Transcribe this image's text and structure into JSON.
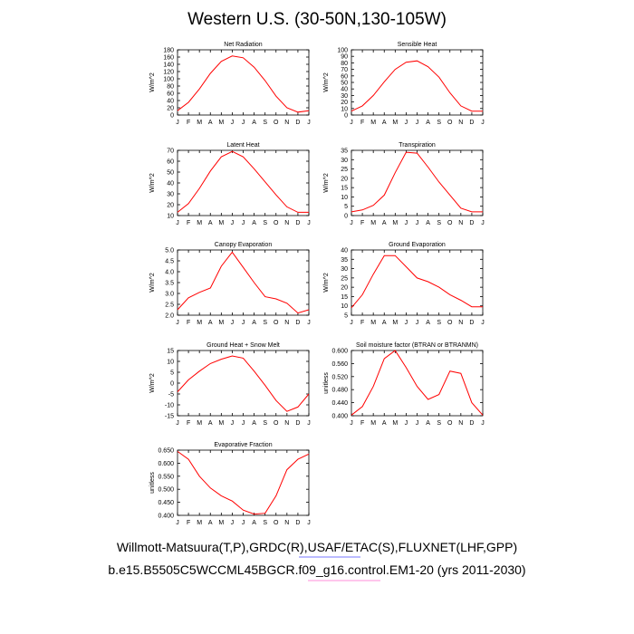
{
  "page": {
    "title": "Western U.S. (30-50N,130-105W)",
    "footer_line1": "Willmott-Matsuura(T,P),GRDC(R),USAF/ETAC(S),FLUXNET(LHF,GPP)",
    "footer_line2": "b.e15.B5505C5WCCML45BGCR.f09_g16.control.EM1-20 (yrs 2011-2030)"
  },
  "colors": {
    "line": "#ff0000",
    "axis": "#000000",
    "footer_underline_1": "#4a4aff",
    "footer_underline_2": "#ff66cc"
  },
  "chart_data": [
    {
      "type": "line",
      "title": "Net Radiation",
      "ylabel": "W/m^2",
      "categories": [
        "J",
        "F",
        "M",
        "A",
        "M",
        "J",
        "J",
        "A",
        "S",
        "O",
        "N",
        "D",
        "J"
      ],
      "ylim": [
        0,
        180
      ],
      "yticks": [
        0,
        20,
        40,
        60,
        80,
        100,
        120,
        140,
        160,
        180
      ],
      "ytick_labels": [
        "0",
        "20",
        "40",
        "60",
        "80",
        "100",
        "120",
        "140",
        "160",
        "180"
      ],
      "values": [
        12,
        35,
        72,
        115,
        148,
        163,
        158,
        132,
        95,
        52,
        20,
        8,
        12
      ]
    },
    {
      "type": "line",
      "title": "Sensible Heat",
      "ylabel": "W/m^2",
      "categories": [
        "J",
        "F",
        "M",
        "A",
        "M",
        "J",
        "J",
        "A",
        "S",
        "O",
        "N",
        "D",
        "J"
      ],
      "ylim": [
        0,
        100
      ],
      "yticks": [
        0,
        10,
        20,
        30,
        40,
        50,
        60,
        70,
        80,
        90,
        100
      ],
      "ytick_labels": [
        "0",
        "10",
        "20",
        "30",
        "40",
        "50",
        "60",
        "70",
        "80",
        "90",
        "100"
      ],
      "values": [
        6,
        14,
        30,
        51,
        70,
        81,
        83,
        74,
        58,
        34,
        14,
        6,
        6
      ]
    },
    {
      "type": "line",
      "title": "Latent Heat",
      "ylabel": "W/m^2",
      "categories": [
        "J",
        "F",
        "M",
        "A",
        "M",
        "J",
        "J",
        "A",
        "S",
        "O",
        "N",
        "D",
        "J"
      ],
      "ylim": [
        10,
        70
      ],
      "yticks": [
        10,
        20,
        30,
        40,
        50,
        60,
        70
      ],
      "ytick_labels": [
        "10",
        "20",
        "30",
        "40",
        "50",
        "60",
        "70"
      ],
      "values": [
        13,
        21,
        35,
        51,
        64,
        69,
        64,
        53,
        41,
        29,
        18,
        13,
        13
      ]
    },
    {
      "type": "line",
      "title": "Transpiration",
      "ylabel": "W/m^2",
      "categories": [
        "J",
        "F",
        "M",
        "A",
        "M",
        "J",
        "J",
        "A",
        "S",
        "O",
        "N",
        "D",
        "J"
      ],
      "ylim": [
        0,
        35
      ],
      "yticks": [
        0,
        5,
        10,
        15,
        20,
        25,
        30,
        35
      ],
      "ytick_labels": [
        "0",
        "5",
        "10",
        "15",
        "20",
        "25",
        "30",
        "35"
      ],
      "values": [
        2,
        3,
        5.5,
        11,
        23,
        34,
        33.5,
        26,
        18,
        11,
        4,
        2,
        2
      ]
    },
    {
      "type": "line",
      "title": "Canopy Evaporation",
      "ylabel": "W/m^2",
      "categories": [
        "J",
        "F",
        "M",
        "A",
        "M",
        "J",
        "J",
        "A",
        "S",
        "O",
        "N",
        "D",
        "J"
      ],
      "ylim": [
        2.0,
        5.0
      ],
      "yticks": [
        2.0,
        2.5,
        3.0,
        3.5,
        4.0,
        4.5,
        5.0
      ],
      "ytick_labels": [
        "2.0",
        "2.5",
        "3.0",
        "3.5",
        "4.0",
        "4.5",
        "5.0"
      ],
      "values": [
        2.25,
        2.8,
        3.05,
        3.25,
        4.25,
        4.9,
        4.2,
        3.5,
        2.85,
        2.75,
        2.55,
        2.1,
        2.25
      ]
    },
    {
      "type": "line",
      "title": "Ground Evaporation",
      "ylabel": "W/m^2",
      "categories": [
        "J",
        "F",
        "M",
        "A",
        "M",
        "J",
        "J",
        "A",
        "S",
        "O",
        "N",
        "D",
        "J"
      ],
      "ylim": [
        5,
        40
      ],
      "yticks": [
        5,
        10,
        15,
        20,
        25,
        30,
        35,
        40
      ],
      "ytick_labels": [
        "5",
        "10",
        "15",
        "20",
        "25",
        "30",
        "35",
        "40"
      ],
      "values": [
        9,
        16,
        27,
        37,
        37,
        31,
        25,
        23,
        20,
        16,
        13,
        9.5,
        9.5
      ]
    },
    {
      "type": "line",
      "title": "Ground Heat + Snow Melt",
      "ylabel": "W/m^2",
      "categories": [
        "J",
        "F",
        "M",
        "A",
        "M",
        "J",
        "J",
        "A",
        "S",
        "O",
        "N",
        "D",
        "J"
      ],
      "ylim": [
        -15,
        15
      ],
      "yticks": [
        -15,
        -10,
        -5,
        0,
        5,
        10,
        15
      ],
      "ytick_labels": [
        "-15",
        "-10",
        "-5",
        "0",
        "5",
        "10",
        "15"
      ],
      "values": [
        -4,
        1.5,
        5.5,
        9,
        11,
        12.5,
        11.5,
        5.5,
        -1,
        -8,
        -13,
        -11,
        -5
      ]
    },
    {
      "type": "line",
      "title": "Soil moisture factor (BTRAN or BTRANMN)",
      "ylabel": "unitless",
      "categories": [
        "J",
        "F",
        "M",
        "A",
        "M",
        "J",
        "J",
        "A",
        "S",
        "O",
        "N",
        "D",
        "J"
      ],
      "ylim": [
        0.4,
        0.6
      ],
      "yticks": [
        0.4,
        0.44,
        0.48,
        0.52,
        0.56,
        0.6
      ],
      "ytick_labels": [
        "0.400",
        "0.440",
        "0.480",
        "0.520",
        "0.560",
        "0.600"
      ],
      "values": [
        0.402,
        0.428,
        0.49,
        0.575,
        0.6,
        0.548,
        0.49,
        0.45,
        0.465,
        0.537,
        0.53,
        0.44,
        0.402
      ]
    },
    {
      "type": "line",
      "title": "Evaporative Fraction",
      "ylabel": "unitless",
      "categories": [
        "J",
        "F",
        "M",
        "A",
        "M",
        "J",
        "J",
        "A",
        "S",
        "O",
        "N",
        "D",
        "J"
      ],
      "ylim": [
        0.4,
        0.65
      ],
      "yticks": [
        0.4,
        0.45,
        0.5,
        0.55,
        0.6,
        0.65
      ],
      "ytick_labels": [
        "0.400",
        "0.450",
        "0.500",
        "0.550",
        "0.600",
        "0.650"
      ],
      "values": [
        0.645,
        0.615,
        0.55,
        0.505,
        0.475,
        0.455,
        0.42,
        0.405,
        0.408,
        0.475,
        0.575,
        0.615,
        0.635
      ]
    }
  ]
}
